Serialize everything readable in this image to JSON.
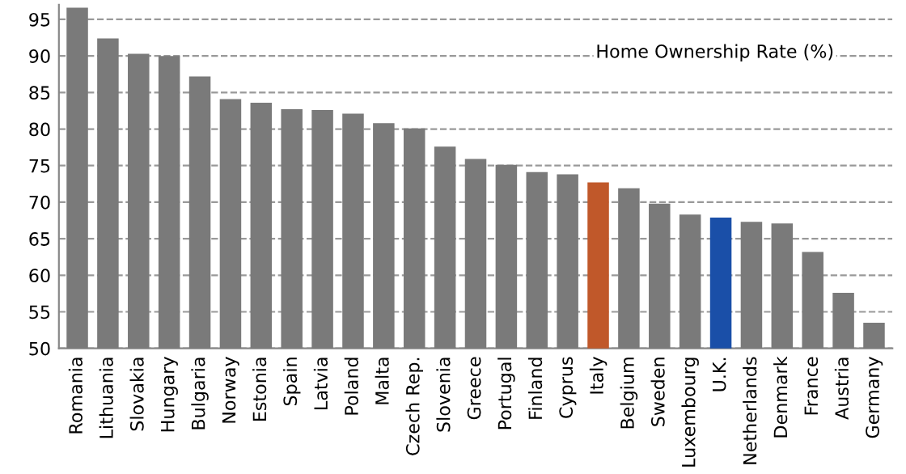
{
  "chart_data": {
    "type": "bar",
    "title": "Home Ownership Rate (%)",
    "categories": [
      "Romania",
      "Lithuania",
      "Slovakia",
      "Hungary",
      "Bulgaria",
      "Norway",
      "Estonia",
      "Spain",
      "Latvia",
      "Poland",
      "Malta",
      "Czech Rep.",
      "Slovenia",
      "Greece",
      "Portugal",
      "Finland",
      "Cyprus",
      "Italy",
      "Belgium",
      "Sweden",
      "Luxembourg",
      "U.K.",
      "Netherlands",
      "Denmark",
      "France",
      "Austria",
      "Germany"
    ],
    "values": [
      96.6,
      92.4,
      90.3,
      90.0,
      87.2,
      84.1,
      83.6,
      82.7,
      82.6,
      82.1,
      80.8,
      80.1,
      77.6,
      75.9,
      75.1,
      74.1,
      73.8,
      72.7,
      71.9,
      69.8,
      68.3,
      67.9,
      67.3,
      67.1,
      63.2,
      57.6,
      53.5
    ],
    "colors": [
      "#7a7a7a",
      "#7a7a7a",
      "#7a7a7a",
      "#7a7a7a",
      "#7a7a7a",
      "#7a7a7a",
      "#7a7a7a",
      "#7a7a7a",
      "#7a7a7a",
      "#7a7a7a",
      "#7a7a7a",
      "#7a7a7a",
      "#7a7a7a",
      "#7a7a7a",
      "#7a7a7a",
      "#7a7a7a",
      "#7a7a7a",
      "#c0582a",
      "#7a7a7a",
      "#7a7a7a",
      "#7a7a7a",
      "#1a4fa8",
      "#7a7a7a",
      "#7a7a7a",
      "#7a7a7a",
      "#7a7a7a",
      "#7a7a7a"
    ],
    "ylim": [
      50,
      97
    ],
    "yticks": [
      50,
      55,
      60,
      65,
      70,
      75,
      80,
      85,
      90,
      95
    ],
    "grid": "y"
  }
}
